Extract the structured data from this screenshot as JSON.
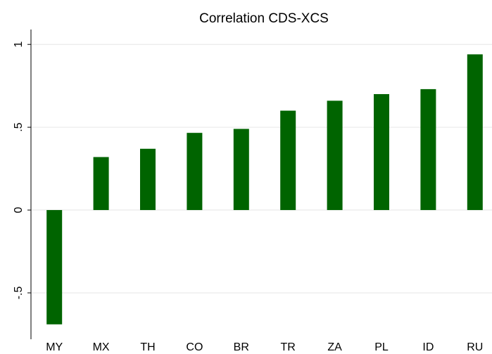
{
  "chart_data": {
    "type": "bar",
    "title": "Correlation CDS-XCS",
    "categories": [
      "MY",
      "MX",
      "TH",
      "CO",
      "BR",
      "TR",
      "ZA",
      "PL",
      "ID",
      "RU"
    ],
    "values": [
      -0.69,
      0.32,
      0.37,
      0.466,
      0.49,
      0.6,
      0.66,
      0.7,
      0.73,
      0.94
    ],
    "color": "#006400",
    "ylim": [
      -0.78,
      1.09
    ],
    "yticks": [
      {
        "value": -0.5,
        "label": "-.5"
      },
      0,
      {
        "value": 0.5,
        "label": ".5"
      },
      1
    ],
    "grid": true
  }
}
